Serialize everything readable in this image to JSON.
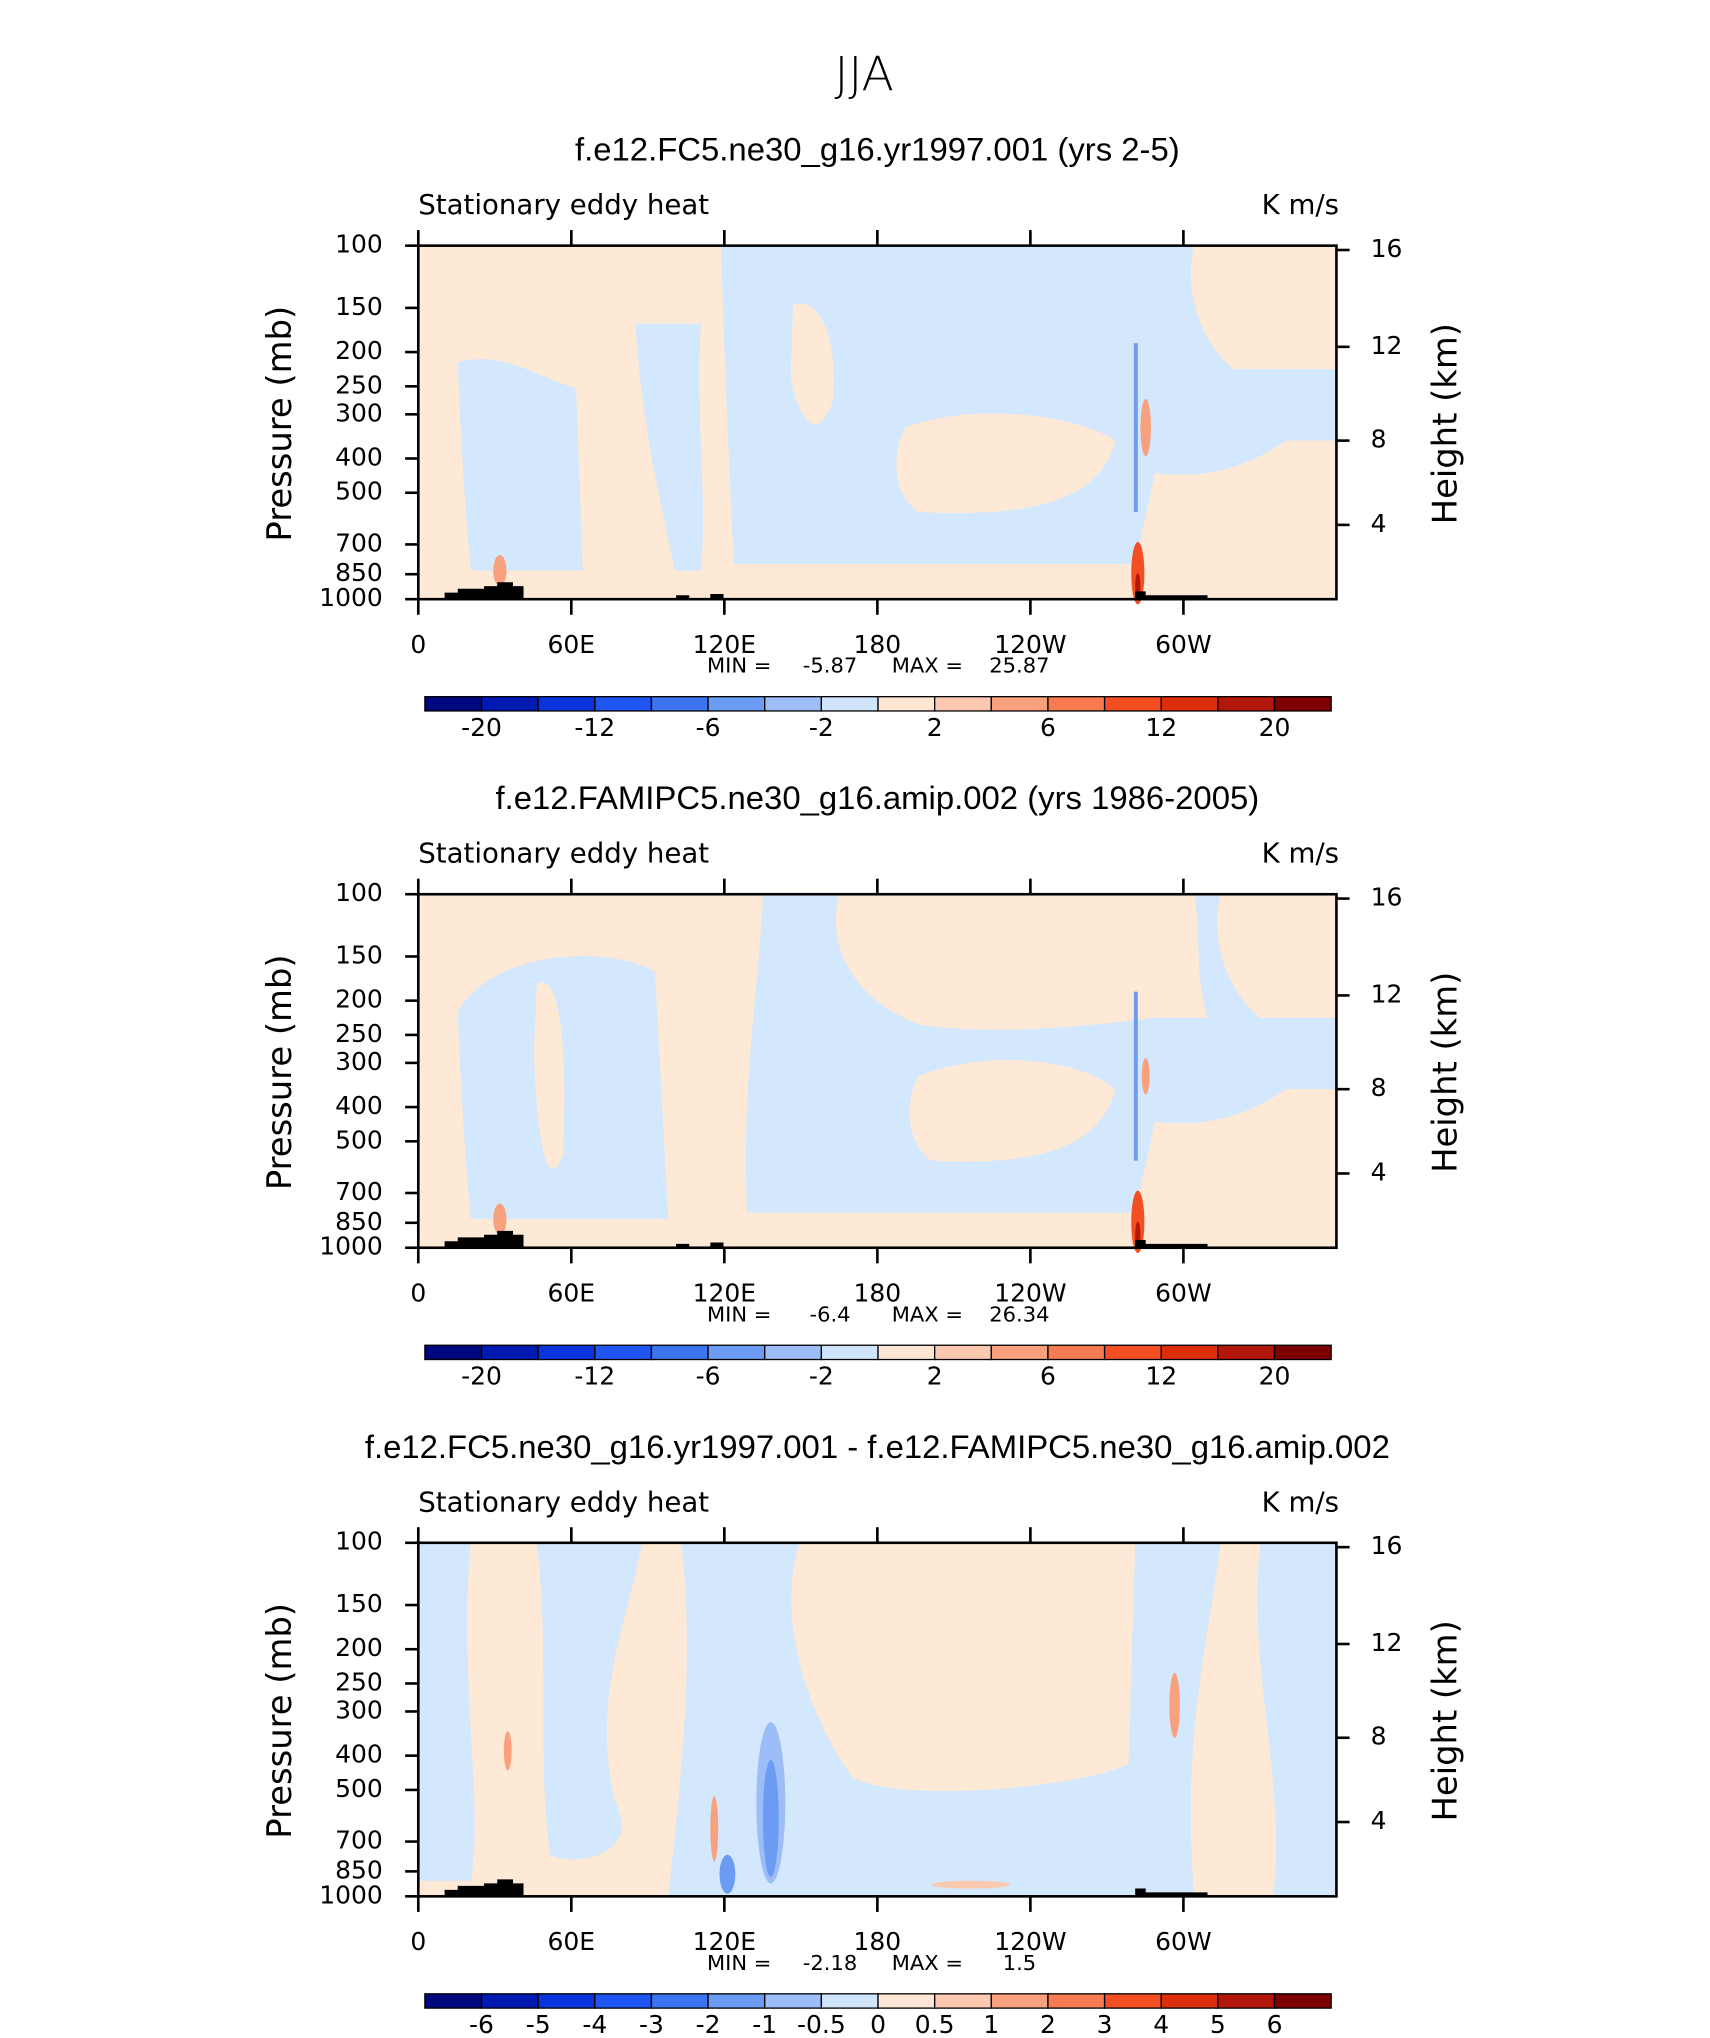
{
  "figure_title": "JJA",
  "chart_data": [
    {
      "type": "contour",
      "title": "f.e12.FC5.ne30_g16.yr1997.001 (yrs 2-5)",
      "left_label": "Stationary eddy heat",
      "right_label": "K m/s",
      "ylabel": "Pressure (mb)",
      "y2label": "Height (km)",
      "xlim": [
        0,
        360
      ],
      "xticks": [
        0,
        {
          "value": 60,
          "label": "60E"
        },
        {
          "value": 120,
          "label": "120E"
        },
        180,
        {
          "value": 240,
          "label": "120W"
        },
        {
          "value": 300,
          "label": "60W"
        }
      ],
      "ylim": [
        1000,
        100
      ],
      "yscale": "log",
      "yticks": [
        100,
        150,
        200,
        250,
        300,
        400,
        500,
        700,
        850,
        1000
      ],
      "y2scale": "standard-atmosphere",
      "y2ticks": [
        16,
        12,
        8,
        4
      ],
      "stats": {
        "min_label": "MIN =",
        "min": -5.87,
        "max_label": "MAX =",
        "max": 25.87
      },
      "colorbar": {
        "colors": [
          "#00087f",
          "#0019b0",
          "#0a35dc",
          "#1f55f2",
          "#3c74f0",
          "#6b9bf3",
          "#9cbdf7",
          "#d0e5fc",
          "#fde7d4",
          "#fcc8b0",
          "#f9a17f",
          "#f77a50",
          "#f44f22",
          "#dc2e0b",
          "#b3160a",
          "#7f0000"
        ],
        "levels": [
          -20,
          -12,
          -6,
          -2,
          2,
          6,
          12,
          20
        ]
      }
    },
    {
      "type": "contour",
      "title": "f.e12.FAMIPC5.ne30_g16.amip.002 (yrs 1986-2005)",
      "left_label": "Stationary eddy heat",
      "right_label": "K m/s",
      "ylabel": "Pressure (mb)",
      "y2label": "Height (km)",
      "xlim": [
        0,
        360
      ],
      "xticks": [
        0,
        {
          "value": 60,
          "label": "60E"
        },
        {
          "value": 120,
          "label": "120E"
        },
        180,
        {
          "value": 240,
          "label": "120W"
        },
        {
          "value": 300,
          "label": "60W"
        }
      ],
      "ylim": [
        1000,
        100
      ],
      "yscale": "log",
      "yticks": [
        100,
        150,
        200,
        250,
        300,
        400,
        500,
        700,
        850,
        1000
      ],
      "y2scale": "standard-atmosphere",
      "y2ticks": [
        16,
        12,
        8,
        4
      ],
      "stats": {
        "min_label": "MIN =",
        "min": -6.4,
        "max_label": "MAX =",
        "max": 26.34
      },
      "colorbar": {
        "colors": [
          "#00087f",
          "#0019b0",
          "#0a35dc",
          "#1f55f2",
          "#3c74f0",
          "#6b9bf3",
          "#9cbdf7",
          "#d0e5fc",
          "#fde7d4",
          "#fcc8b0",
          "#f9a17f",
          "#f77a50",
          "#f44f22",
          "#dc2e0b",
          "#b3160a",
          "#7f0000"
        ],
        "levels": [
          -20,
          -12,
          -6,
          -2,
          2,
          6,
          12,
          20
        ]
      }
    },
    {
      "type": "contour",
      "title": "f.e12.FC5.ne30_g16.yr1997.001 - f.e12.FAMIPC5.ne30_g16.amip.002",
      "left_label": "Stationary eddy heat",
      "right_label": "K m/s",
      "ylabel": "Pressure (mb)",
      "y2label": "Height (km)",
      "xlim": [
        0,
        360
      ],
      "xticks": [
        0,
        {
          "value": 60,
          "label": "60E"
        },
        {
          "value": 120,
          "label": "120E"
        },
        180,
        {
          "value": 240,
          "label": "120W"
        },
        {
          "value": 300,
          "label": "60W"
        }
      ],
      "ylim": [
        1000,
        100
      ],
      "yscale": "log",
      "yticks": [
        100,
        150,
        200,
        250,
        300,
        400,
        500,
        700,
        850,
        1000
      ],
      "y2scale": "standard-atmosphere",
      "y2ticks": [
        16,
        12,
        8,
        4
      ],
      "stats": {
        "min_label": "MIN =",
        "min": -2.18,
        "max_label": "MAX =",
        "max": 1.5
      },
      "colorbar": {
        "colors": [
          "#00087f",
          "#0019b0",
          "#0a35dc",
          "#1f55f2",
          "#3c74f0",
          "#6b9bf3",
          "#9cbdf7",
          "#d0e5fc",
          "#fde7d4",
          "#fcc8b0",
          "#f9a17f",
          "#f77a50",
          "#f44f22",
          "#dc2e0b",
          "#b3160a",
          "#7f0000"
        ],
        "levels": [
          -6,
          -5,
          -4,
          -3,
          -2,
          -1,
          -0.5,
          0,
          0.5,
          1,
          2,
          3,
          4,
          5,
          6
        ]
      }
    }
  ]
}
